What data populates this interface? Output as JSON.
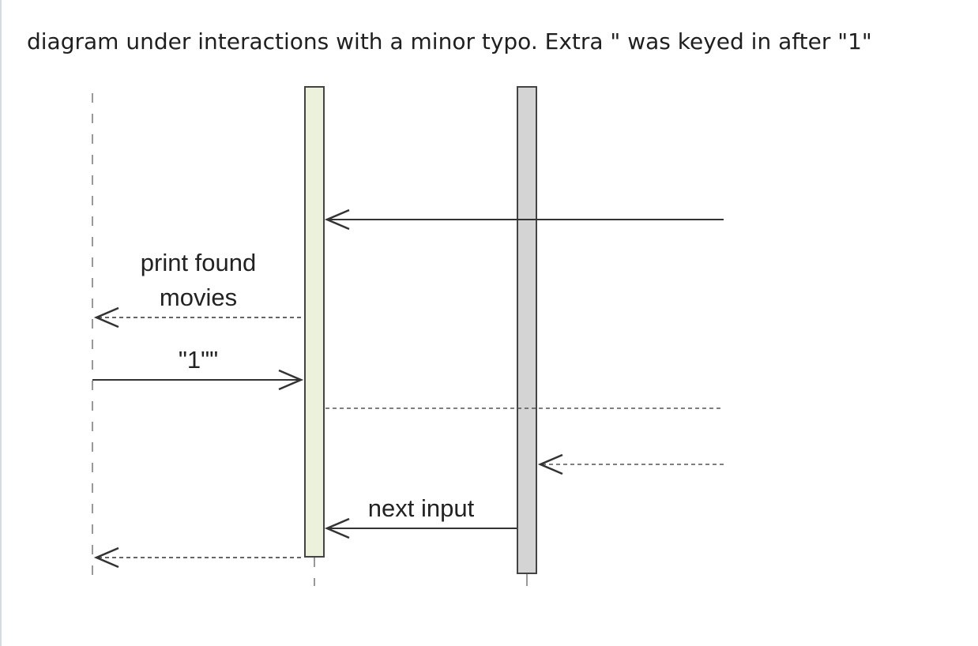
{
  "caption": "diagram under interactions with a minor typo. Extra \" was keyed in after \"1\"",
  "messages": [
    {
      "id": "m1",
      "label": "",
      "style": "solid"
    },
    {
      "id": "m2",
      "label_lines": [
        "print found",
        "movies"
      ],
      "style": "dashed"
    },
    {
      "id": "m3",
      "label": "\"1\"\"",
      "style": "solid"
    },
    {
      "id": "m4",
      "label": "",
      "style": "dashed"
    },
    {
      "id": "m5",
      "label": "",
      "style": "dashed"
    },
    {
      "id": "m6",
      "label": "next input",
      "style": "solid"
    },
    {
      "id": "m7",
      "label": "",
      "style": "dashed"
    }
  ],
  "colors": {
    "activation_left": "#ecf1dc",
    "activation_right": "#d4d4d4",
    "line": "#333333",
    "lifeline": "#777777"
  }
}
